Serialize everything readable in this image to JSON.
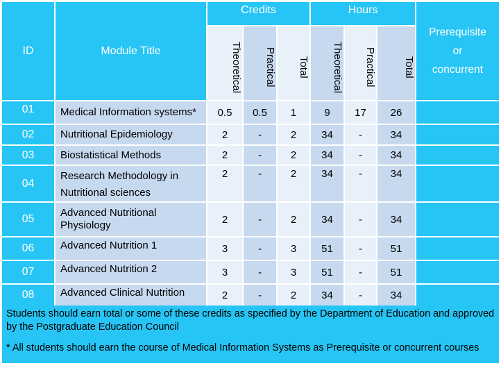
{
  "header": {
    "id": "ID",
    "module_title": "Module Title",
    "credits": "Credits",
    "hours": "Hours",
    "prereq_line1": "Prerequisite",
    "prereq_line2": "or",
    "prereq_line3": "concurrent",
    "theoretical": "Theoretical",
    "practical": "Practical",
    "total": "Total"
  },
  "rows": [
    {
      "id": "01",
      "title": "Medical Information systems*",
      "cr_theo": "0.5",
      "cr_prac": "0.5",
      "cr_total": "1",
      "hr_theo": "9",
      "hr_prac": "17",
      "hr_total": "26",
      "prereq": ""
    },
    {
      "id": "02",
      "title": "Nutritional Epidemiology",
      "cr_theo": "2",
      "cr_prac": "-",
      "cr_total": "2",
      "hr_theo": "34",
      "hr_prac": "-",
      "hr_total": "34",
      "prereq": ""
    },
    {
      "id": "03",
      "title": "Biostatistical Methods",
      "cr_theo": "2",
      "cr_prac": "-",
      "cr_total": "2",
      "hr_theo": "34",
      "hr_prac": "-",
      "hr_total": "34",
      "prereq": ""
    },
    {
      "id": "04",
      "title_line1": "Research Methodology in",
      "title_line2": "Nutritional sciences",
      "cr_theo": "2",
      "cr_prac": "-",
      "cr_total": "2",
      "hr_theo": "34",
      "hr_prac": "-",
      "hr_total": "34",
      "prereq": ""
    },
    {
      "id": "05",
      "title_line1": "Advanced Nutritional",
      "title_line2": "Physiology",
      "cr_theo": "2",
      "cr_prac": "-",
      "cr_total": "2",
      "hr_theo": "34",
      "hr_prac": "-",
      "hr_total": "34",
      "prereq": ""
    },
    {
      "id": "06",
      "title": "Advanced Nutrition 1",
      "cr_theo": "3",
      "cr_prac": "-",
      "cr_total": "3",
      "hr_theo": "51",
      "hr_prac": "-",
      "hr_total": "51",
      "prereq": ""
    },
    {
      "id": "07",
      "title": "Advanced Nutrition 2",
      "cr_theo": "3",
      "cr_prac": "-",
      "cr_total": "3",
      "hr_theo": "51",
      "hr_prac": "-",
      "hr_total": "51",
      "prereq": ""
    },
    {
      "id": "08",
      "title": "Advanced Clinical Nutrition",
      "cr_theo": "2",
      "cr_prac": "-",
      "cr_total": "2",
      "hr_theo": "34",
      "hr_prac": "-",
      "hr_total": "34",
      "prereq": ""
    }
  ],
  "footer": {
    "note1": "Students should earn total or some of these credits as specified by the Department of Education and approved by the Postgraduate Education Council",
    "note2": "* All students should earn the course of Medical Information Systems as Prerequisite or concurrent courses"
  },
  "colors": {
    "header_cyan": "#26c5f5",
    "row_light": "#c6d9ef",
    "cell_pale": "#e8f0f9"
  }
}
